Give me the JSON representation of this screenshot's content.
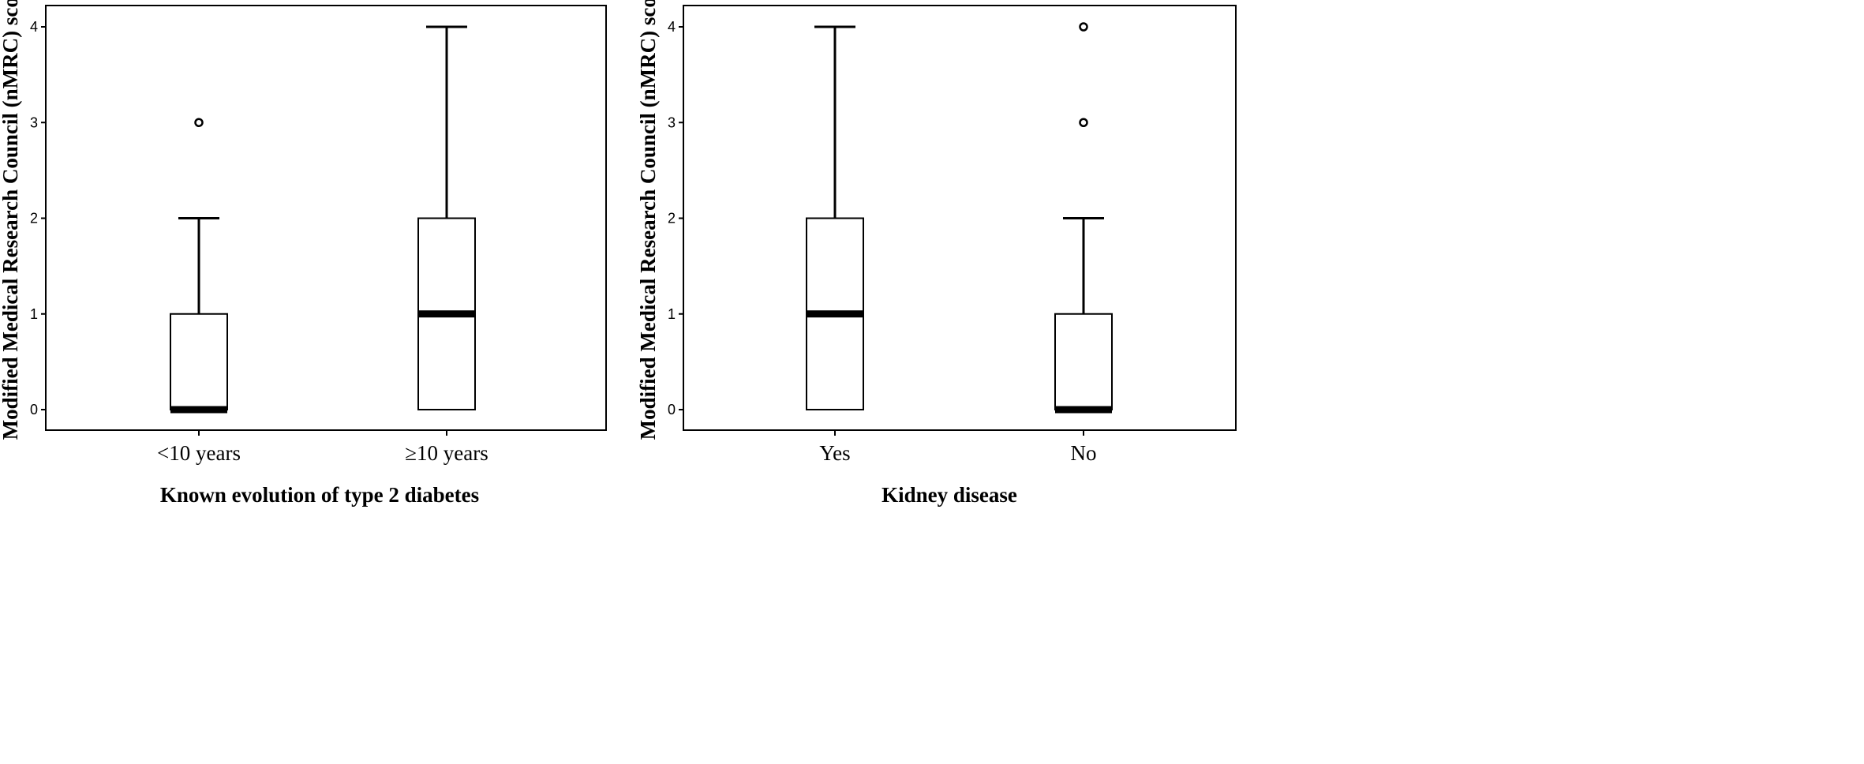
{
  "chart_data": [
    {
      "type": "box",
      "xlabel": "Known  evolution  of type 2 diabetes",
      "ylabel": "Modified Medical Research Council  (nMRC)  score",
      "ylim": [
        0,
        4
      ],
      "yticks": [
        "0",
        "1",
        "2",
        "3",
        "4"
      ],
      "categories": [
        "<10 years",
        "≥10 years"
      ],
      "boxes": [
        {
          "category": "<10 years",
          "whisker_low": 0,
          "q1": 0,
          "median": 0,
          "q3": 1,
          "whisker_high": 2,
          "outliers": [
            3
          ]
        },
        {
          "category": "≥10 years",
          "whisker_low": 0,
          "q1": 0,
          "median": 1,
          "q3": 2,
          "whisker_high": 4,
          "outliers": []
        }
      ],
      "grid": false
    },
    {
      "type": "box",
      "xlabel": "Kidney disease",
      "ylabel": "Modified Medical Research Council  (nMRC)  score",
      "ylim": [
        0,
        4
      ],
      "yticks": [
        "0",
        "1",
        "2",
        "3",
        "4"
      ],
      "categories": [
        "Yes",
        "No"
      ],
      "boxes": [
        {
          "category": "Yes",
          "whisker_low": 0,
          "q1": 0,
          "median": 1,
          "q3": 2,
          "whisker_high": 4,
          "outliers": []
        },
        {
          "category": "No",
          "whisker_low": 0,
          "q1": 0,
          "median": 0,
          "q3": 1,
          "whisker_high": 2,
          "outliers": [
            3,
            4
          ]
        }
      ],
      "grid": false
    }
  ]
}
